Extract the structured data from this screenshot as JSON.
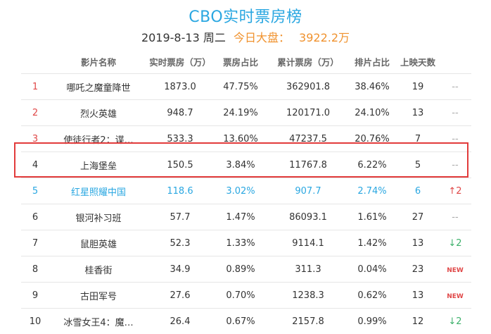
{
  "header": {
    "title": "CBO实时票房榜",
    "date": "2019-8-13 周二",
    "today_label": "今日大盘：",
    "today_amount": "3922.2万"
  },
  "table": {
    "columns": [
      "",
      "影片名称",
      "实时票房（万）",
      "票房占比",
      "累计票房（万）",
      "排片占比",
      "上映天数",
      ""
    ],
    "rows": [
      {
        "rank": "1",
        "name": "哪吒之魔童降世",
        "realtime": "1873.0",
        "share": "47.75%",
        "cumulative": "362901.8",
        "schedule": "38.46%",
        "days": "19",
        "trend": "--",
        "trend_type": "dash",
        "rank_color": "red"
      },
      {
        "rank": "2",
        "name": "烈火英雄",
        "realtime": "948.7",
        "share": "24.19%",
        "cumulative": "120171.0",
        "schedule": "24.10%",
        "days": "13",
        "trend": "--",
        "trend_type": "dash",
        "rank_color": "red"
      },
      {
        "rank": "3",
        "name": "使徒行者2：谍…",
        "realtime": "533.3",
        "share": "13.60%",
        "cumulative": "47237.5",
        "schedule": "20.76%",
        "days": "7",
        "trend": "--",
        "trend_type": "dash",
        "rank_color": "red"
      },
      {
        "rank": "4",
        "name": "上海堡垒",
        "realtime": "150.5",
        "share": "3.84%",
        "cumulative": "11767.8",
        "schedule": "6.22%",
        "days": "5",
        "trend": "--",
        "trend_type": "dash",
        "rank_color": "normal"
      },
      {
        "rank": "5",
        "name": "红星照耀中国",
        "realtime": "118.6",
        "share": "3.02%",
        "cumulative": "907.7",
        "schedule": "2.74%",
        "days": "6",
        "trend": "↑2",
        "trend_type": "up",
        "rank_color": "blue"
      },
      {
        "rank": "6",
        "name": "银河补习班",
        "realtime": "57.7",
        "share": "1.47%",
        "cumulative": "86093.1",
        "schedule": "1.61%",
        "days": "27",
        "trend": "--",
        "trend_type": "dash",
        "rank_color": "normal"
      },
      {
        "rank": "7",
        "name": "鼠胆英雄",
        "realtime": "52.3",
        "share": "1.33%",
        "cumulative": "9114.1",
        "schedule": "1.42%",
        "days": "13",
        "trend": "↓2",
        "trend_type": "down",
        "rank_color": "normal"
      },
      {
        "rank": "8",
        "name": "桂香街",
        "realtime": "34.9",
        "share": "0.89%",
        "cumulative": "311.3",
        "schedule": "0.04%",
        "days": "23",
        "trend": "NEW",
        "trend_type": "new",
        "rank_color": "normal"
      },
      {
        "rank": "9",
        "name": "古田军号",
        "realtime": "27.6",
        "share": "0.70%",
        "cumulative": "1238.3",
        "schedule": "0.62%",
        "days": "13",
        "trend": "NEW",
        "trend_type": "new",
        "rank_color": "normal"
      },
      {
        "rank": "10",
        "name": "冰雪女王4：魔…",
        "realtime": "26.4",
        "share": "0.67%",
        "cumulative": "2157.8",
        "schedule": "0.99%",
        "days": "12",
        "trend": "↓2",
        "trend_type": "down",
        "rank_color": "normal"
      }
    ]
  },
  "colors": {
    "title": "#2aa7e1",
    "accent_orange": "#f0922e",
    "rank_red": "#e04848",
    "highlight_blue": "#2aa7e1",
    "focus_box": "#e23b3b",
    "trend_up": "#e04848",
    "trend_down": "#3cb06a"
  }
}
